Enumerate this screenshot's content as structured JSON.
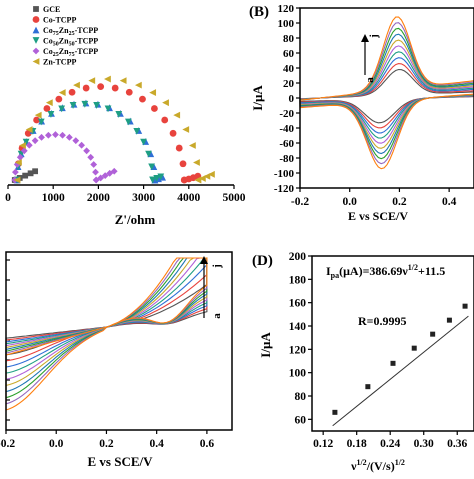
{
  "chart_data": [
    {
      "panel": "A",
      "type": "scatter",
      "title": "",
      "xlabel": "Z'/ohm",
      "ylabel": "",
      "xlim": [
        0,
        5000
      ],
      "x_ticks": [
        "0",
        "1000",
        "2000",
        "3000",
        "4000",
        "5000"
      ],
      "legend": "top-left",
      "legend_entries": [
        "GCE",
        "Co-TCPP",
        "Co75Zn25-TCPP",
        "Co50Zn50-TCPP",
        "Co25Zn75-TCPP",
        "Zn-TCPP"
      ],
      "series": [
        {
          "name": "GCE",
          "label_main": "GCE",
          "label_sub1": "",
          "label_mid": "",
          "label_sub2": "",
          "label_tail": "",
          "marker": "square",
          "color": "#555555",
          "center": 0,
          "radius": 0,
          "start": 0,
          "end": 0,
          "tail": [
            [
              150,
              0
            ],
            [
              260,
              40
            ],
            [
              380,
              85
            ],
            [
              500,
              130
            ],
            [
              600,
              170
            ]
          ]
        },
        {
          "name": "Co-TCPP",
          "label_main": "Co-TCPP",
          "label_sub1": "",
          "label_mid": "",
          "label_sub2": "",
          "label_tail": "",
          "marker": "circle",
          "color": "#e8433d",
          "center": 2050,
          "radius": 1850,
          "start": 200,
          "end": 3900,
          "tail": [
            [
              3900,
              0
            ],
            [
              4000,
              20
            ],
            [
              4100,
              45
            ],
            [
              4200,
              75
            ]
          ]
        },
        {
          "name": "Co75Zn25-TCPP",
          "label_main": "Co",
          "label_sub1": "75",
          "label_mid": "Zn",
          "label_sub2": "25",
          "label_tail": "-TCPP",
          "marker": "triangle",
          "color": "#2f6fd6",
          "center": 1725,
          "radius": 1525,
          "start": 200,
          "end": 3250,
          "tail": [
            [
              3250,
              0
            ],
            [
              3330,
              25
            ],
            [
              3420,
              55
            ]
          ]
        },
        {
          "name": "Co50Zn50-TCPP",
          "label_main": "Co",
          "label_sub1": "50",
          "label_mid": "Zn",
          "label_sub2": "50",
          "label_tail": "-TCPP",
          "marker": "triangle-down",
          "color": "#1e9e84",
          "center": 1700,
          "radius": 1500,
          "start": 200,
          "end": 3200,
          "tail": [
            [
              3200,
              0
            ],
            [
              3290,
              30
            ],
            [
              3380,
              60
            ]
          ]
        },
        {
          "name": "Co25Zn75-TCPP",
          "label_main": "Co",
          "label_sub1": "25",
          "label_mid": "Zn",
          "label_sub2": "75",
          "label_tail": "-TCPP",
          "marker": "diamond",
          "color": "#b061d8",
          "center": 1050,
          "radius": 900,
          "start": 150,
          "end": 1950,
          "tail": [
            [
              1950,
              0
            ],
            [
              2050,
              40
            ],
            [
              2150,
              85
            ],
            [
              2250,
              130
            ],
            [
              2350,
              170
            ]
          ]
        },
        {
          "name": "Zn-TCPP",
          "label_main": "Zn-TCPP",
          "label_sub1": "",
          "label_mid": "",
          "label_sub2": "",
          "label_tail": "",
          "marker": "triangle-left",
          "color": "#c9a92b",
          "center": 2200,
          "radius": 2000,
          "start": 200,
          "end": 4200,
          "tail": [
            [
              4200,
              0
            ],
            [
              4300,
              30
            ],
            [
              4400,
              70
            ],
            [
              4500,
              110
            ]
          ]
        }
      ]
    },
    {
      "panel": "B",
      "type": "line",
      "title": "",
      "xlabel": "E vs SCE/V",
      "ylabel": "I/μA",
      "xlim": [
        -0.2,
        0.5
      ],
      "ylim": [
        -120,
        120
      ],
      "x_ticks": [
        "-0.2",
        "0.0",
        "0.2",
        "0.4"
      ],
      "y_ticks": [
        "-120",
        "-100",
        "-80",
        "-60",
        "-40",
        "-20",
        "0",
        "20",
        "40",
        "60",
        "80",
        "100",
        "120"
      ],
      "arrow_labels": {
        "start": "a",
        "end": "j"
      },
      "n_curves": 10,
      "curve_scale": {
        "min": 0.35,
        "max": 1.0
      },
      "curve_params": {
        "peak_anodic": {
          "E": 0.19,
          "I": 97
        },
        "peak_cathodic": {
          "E": 0.13,
          "I": -90
        },
        "E_start": -0.2,
        "E_end": 0.5,
        "I_at_start": -14,
        "I_at_end": 38
      },
      "curve_colors": [
        "#555555",
        "#e8433d",
        "#2f6fd6",
        "#1e9e84",
        "#b061d8",
        "#c9a92b",
        "#1f77b4",
        "#2ca02c",
        "#9467bd",
        "#ff7f0e"
      ]
    },
    {
      "panel": "C",
      "type": "line",
      "title": "",
      "xlabel": "E vs SCE/V",
      "ylabel": "",
      "xlim": [
        -0.2,
        0.7
      ],
      "x_ticks": [
        "-0.2",
        "0.0",
        "0.2",
        "0.4",
        "0.6"
      ],
      "arrow_labels": {
        "start": "a",
        "end": "j"
      },
      "n_curves": 10,
      "curve_params": {
        "peak_anodic": {
          "E": 0.6,
          "I": 1.0
        },
        "E_start": -0.2,
        "E_end": 0.6
      },
      "curve_colors": [
        "#555555",
        "#e8433d",
        "#2f6fd6",
        "#1e9e84",
        "#b061d8",
        "#c9a92b",
        "#1f77b4",
        "#2ca02c",
        "#9467bd",
        "#ff7f0e"
      ]
    },
    {
      "panel": "D",
      "type": "scatter",
      "title": "",
      "xlabel_main": "ν",
      "xlabel_sup1": "1/2",
      "xlabel_mid": "/(V/s)",
      "xlabel_sup2": "1/2",
      "ylabel": "I/μA",
      "xlim": [
        0.1,
        0.39
      ],
      "ylim": [
        50,
        200
      ],
      "x_ticks": [
        "0.12",
        "0.18",
        "0.24",
        "0.30",
        "0.36"
      ],
      "y_ticks": [
        "60",
        "80",
        "100",
        "120",
        "140",
        "160",
        "180",
        "200"
      ],
      "equation_main": "I",
      "equation_sub": "pa",
      "equation_mid": "(μA)=386.69ν",
      "equation_sup": "1/2",
      "equation_tail": "+11.5",
      "r_label": "R=0.9995",
      "slope": 386.69,
      "intercept": 11.5,
      "x": [
        0.141,
        0.2,
        0.245,
        0.283,
        0.316,
        0.346,
        0.374
      ],
      "y": [
        66,
        88,
        108,
        121,
        133,
        145,
        157
      ]
    }
  ],
  "panel_labels": [
    "(B)",
    "(D)"
  ]
}
